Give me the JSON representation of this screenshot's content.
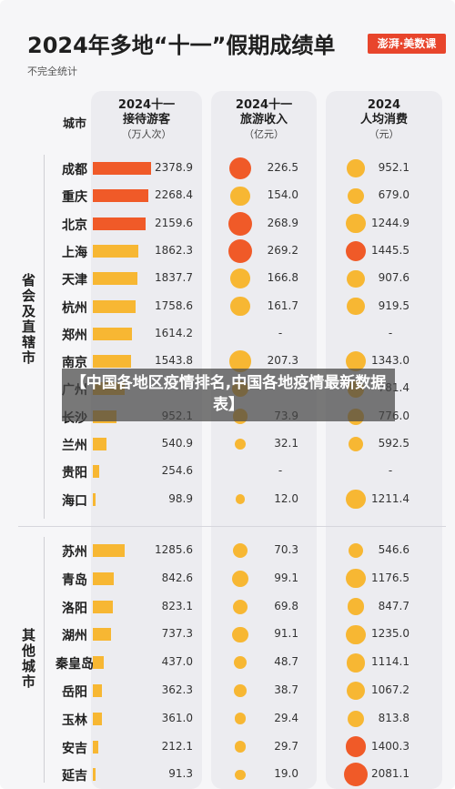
{
  "title": "2024年多地“十一”假期成绩单",
  "subtitle": "不完全统计",
  "logo_text": "澎湃·美数课",
  "banner": "【中国各地区疫情排名,中国各地疫情最新数据表】",
  "columns": {
    "city": "城市",
    "visitors": {
      "title": "2024十一\n接待游客",
      "unit": "（万人次）"
    },
    "revenue": {
      "title": "2024十一\n旅游收入",
      "unit": "（亿元）"
    },
    "per_capita": {
      "title": "2024\n人均消费",
      "unit": "（元）"
    }
  },
  "groups": [
    {
      "label": "省会及直辖市"
    },
    {
      "label": "其他城市"
    }
  ],
  "colors": {
    "bar_orange": "#f05a28",
    "bar_yellow": "#f7b733",
    "dot_orange": "#f05a28",
    "dot_yellow": "#f7b733"
  },
  "chart_data": {
    "type": "table",
    "columns": [
      "城市",
      "2024十一接待游客（万人次）",
      "2024十一旅游收入（亿元）",
      "2024人均消费（元）"
    ],
    "rows": [
      {
        "group": 0,
        "city": "成都",
        "visitors": 2378.9,
        "visitors_text": "2378.9",
        "revenue": 226.5,
        "revenue_text": "226.5",
        "per_capita": 952.1,
        "per_capita_text": "952.1"
      },
      {
        "group": 0,
        "city": "重庆",
        "visitors": 2268.4,
        "visitors_text": "2268.4",
        "revenue": 154.0,
        "revenue_text": "154.0",
        "per_capita": 679.0,
        "per_capita_text": "679.0"
      },
      {
        "group": 0,
        "city": "北京",
        "visitors": 2159.6,
        "visitors_text": "2159.6",
        "revenue": 268.9,
        "revenue_text": "268.9",
        "per_capita": 1244.9,
        "per_capita_text": "1244.9"
      },
      {
        "group": 0,
        "city": "上海",
        "visitors": 1862.3,
        "visitors_text": "1862.3",
        "revenue": 269.2,
        "revenue_text": "269.2",
        "per_capita": 1445.5,
        "per_capita_text": "1445.5"
      },
      {
        "group": 0,
        "city": "天津",
        "visitors": 1837.7,
        "visitors_text": "1837.7",
        "revenue": 166.8,
        "revenue_text": "166.8",
        "per_capita": 907.6,
        "per_capita_text": "907.6"
      },
      {
        "group": 0,
        "city": "杭州",
        "visitors": 1758.6,
        "visitors_text": "1758.6",
        "revenue": 161.7,
        "revenue_text": "161.7",
        "per_capita": 919.5,
        "per_capita_text": "919.5"
      },
      {
        "group": 0,
        "city": "郑州",
        "visitors": 1614.2,
        "visitors_text": "1614.2",
        "revenue": null,
        "revenue_text": "-",
        "per_capita": null,
        "per_capita_text": "-"
      },
      {
        "group": 0,
        "city": "南京",
        "visitors": 1543.8,
        "visitors_text": "1543.8",
        "revenue": 207.3,
        "revenue_text": "207.3",
        "per_capita": 1343.0,
        "per_capita_text": "1343.0"
      },
      {
        "group": 0,
        "city": "广州",
        "visitors": 1300,
        "visitors_text": "",
        "revenue": 100,
        "revenue_text": "",
        "per_capita": 781.4,
        "per_capita_text": "781.4"
      },
      {
        "group": 0,
        "city": "长沙",
        "visitors": 952.1,
        "visitors_text": "952.1",
        "revenue": 73.9,
        "revenue_text": "73.9",
        "per_capita": 776.0,
        "per_capita_text": "776.0"
      },
      {
        "group": 0,
        "city": "兰州",
        "visitors": 540.9,
        "visitors_text": "540.9",
        "revenue": 32.1,
        "revenue_text": "32.1",
        "per_capita": 592.5,
        "per_capita_text": "592.5"
      },
      {
        "group": 0,
        "city": "贵阳",
        "visitors": 254.6,
        "visitors_text": "254.6",
        "revenue": null,
        "revenue_text": "-",
        "per_capita": null,
        "per_capita_text": "-"
      },
      {
        "group": 0,
        "city": "海口",
        "visitors": 98.9,
        "visitors_text": "98.9",
        "revenue": 12.0,
        "revenue_text": "12.0",
        "per_capita": 1211.4,
        "per_capita_text": "1211.4"
      },
      {
        "group": 1,
        "city": "苏州",
        "visitors": 1285.6,
        "visitors_text": "1285.6",
        "revenue": 70.3,
        "revenue_text": "70.3",
        "per_capita": 546.6,
        "per_capita_text": "546.6"
      },
      {
        "group": 1,
        "city": "青岛",
        "visitors": 842.6,
        "visitors_text": "842.6",
        "revenue": 99.1,
        "revenue_text": "99.1",
        "per_capita": 1176.5,
        "per_capita_text": "1176.5"
      },
      {
        "group": 1,
        "city": "洛阳",
        "visitors": 823.1,
        "visitors_text": "823.1",
        "revenue": 69.8,
        "revenue_text": "69.8",
        "per_capita": 847.7,
        "per_capita_text": "847.7"
      },
      {
        "group": 1,
        "city": "湖州",
        "visitors": 737.3,
        "visitors_text": "737.3",
        "revenue": 91.1,
        "revenue_text": "91.1",
        "per_capita": 1235.0,
        "per_capita_text": "1235.0"
      },
      {
        "group": 1,
        "city": "秦皇岛",
        "visitors": 437.0,
        "visitors_text": "437.0",
        "revenue": 48.7,
        "revenue_text": "48.7",
        "per_capita": 1114.1,
        "per_capita_text": "1114.1"
      },
      {
        "group": 1,
        "city": "岳阳",
        "visitors": 362.3,
        "visitors_text": "362.3",
        "revenue": 38.7,
        "revenue_text": "38.7",
        "per_capita": 1067.2,
        "per_capita_text": "1067.2"
      },
      {
        "group": 1,
        "city": "玉林",
        "visitors": 361.0,
        "visitors_text": "361.0",
        "revenue": 29.4,
        "revenue_text": "29.4",
        "per_capita": 813.8,
        "per_capita_text": "813.8"
      },
      {
        "group": 1,
        "city": "安吉",
        "visitors": 212.1,
        "visitors_text": "212.1",
        "revenue": 29.7,
        "revenue_text": "29.7",
        "per_capita": 1400.3,
        "per_capita_text": "1400.3"
      },
      {
        "group": 1,
        "city": "延吉",
        "visitors": 91.3,
        "visitors_text": "91.3",
        "revenue": 19.0,
        "revenue_text": "19.0",
        "per_capita": 2081.1,
        "per_capita_text": "2081.1"
      }
    ],
    "highlight_top3": {
      "visitors": [
        "成都",
        "重庆",
        "北京"
      ],
      "revenue": [
        "北京",
        "上海",
        "成都"
      ],
      "per_capita": [
        "上海",
        "安吉",
        "延吉"
      ]
    }
  }
}
